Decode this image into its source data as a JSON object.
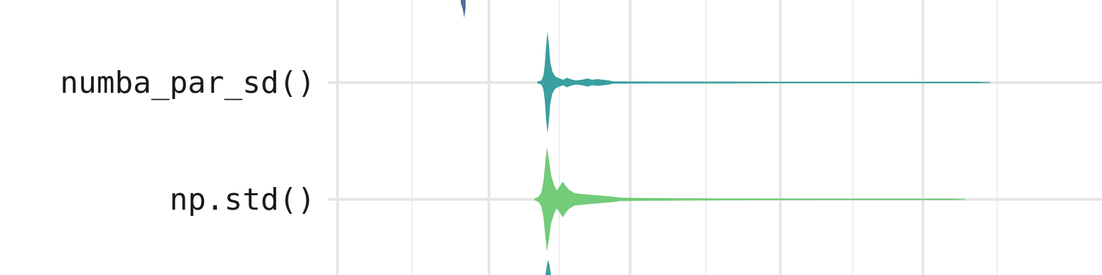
{
  "chart_data": {
    "type": "violin",
    "orientation": "horizontal",
    "grid": true,
    "categories": [
      {
        "label": "numba_par_sd()",
        "color": "#3a9f9e"
      },
      {
        "label": "np.std()",
        "color": "#72cc78"
      }
    ],
    "partially_visible_marks": [
      "#4e6f9a",
      "#3a9f9e"
    ]
  }
}
